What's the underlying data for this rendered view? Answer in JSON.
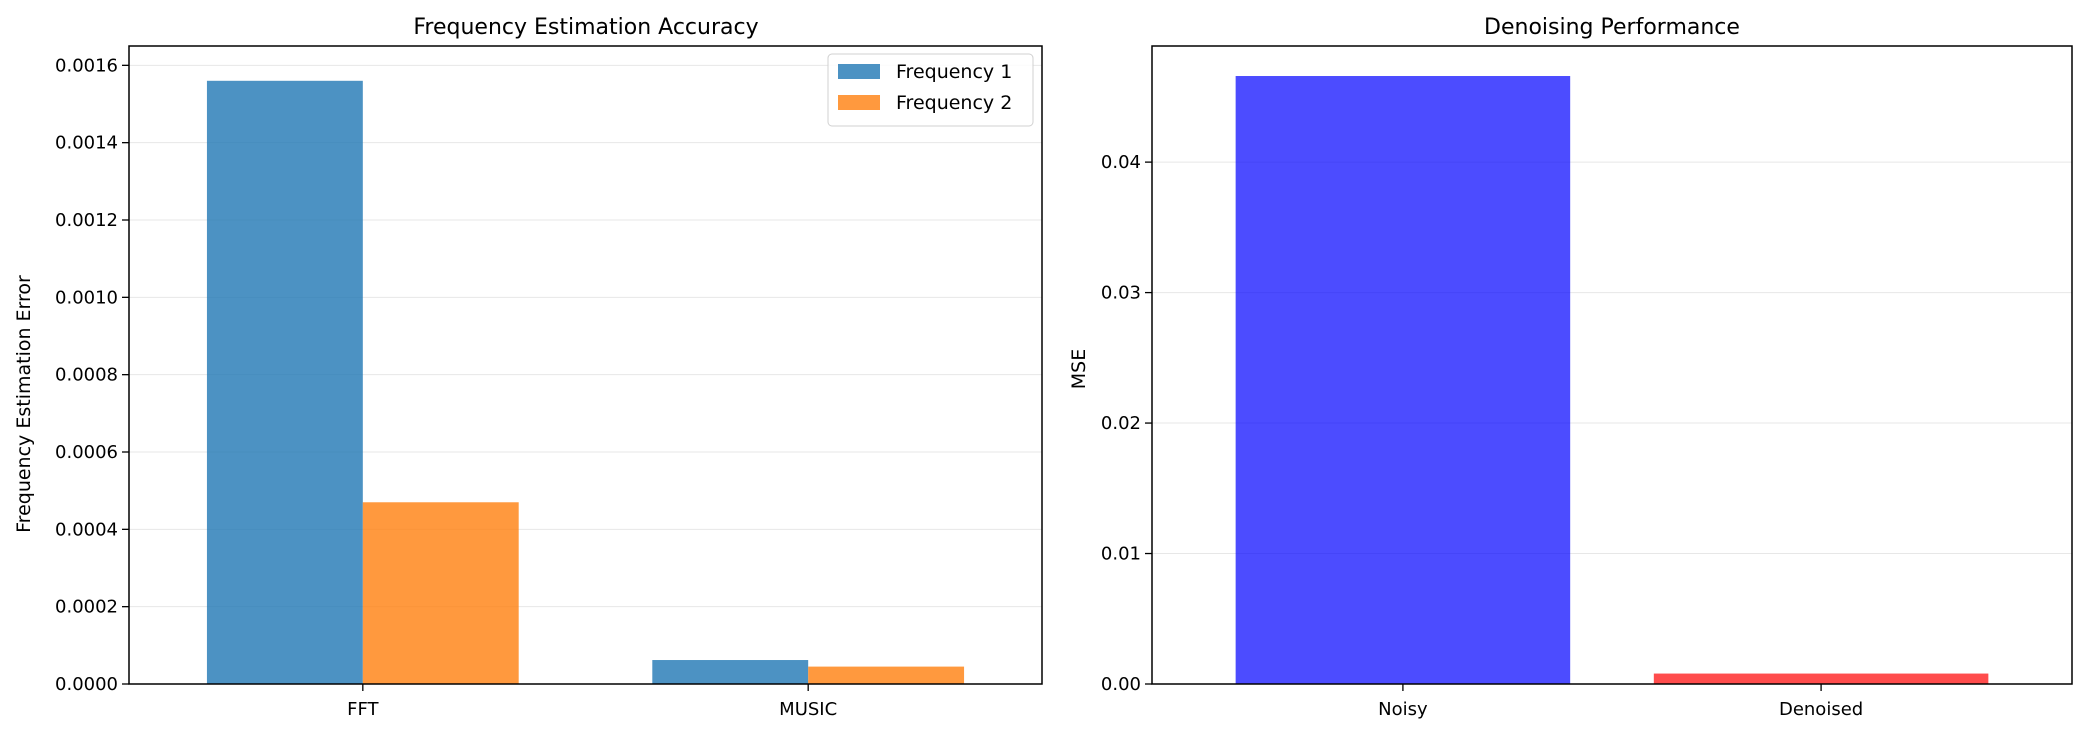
{
  "chart_data": [
    {
      "type": "bar",
      "title": "Frequency Estimation Accuracy",
      "xlabel": "",
      "ylabel": "Frequency Estimation Error",
      "categories": [
        "FFT",
        "MUSIC"
      ],
      "series": [
        {
          "name": "Frequency 1",
          "color": "#1f77b4",
          "values": [
            0.00156,
            6.2e-05
          ]
        },
        {
          "name": "Frequency 2",
          "color": "#ff7f0e",
          "values": [
            0.00047,
            4.5e-05
          ]
        }
      ],
      "ylim": [
        0,
        0.00165
      ],
      "yticks": [
        0.0,
        0.0002,
        0.0004,
        0.0006,
        0.0008,
        0.001,
        0.0012,
        0.0014,
        0.0016
      ],
      "ytick_labels": [
        "0.0000",
        "0.0002",
        "0.0004",
        "0.0006",
        "0.0008",
        "0.0010",
        "0.0012",
        "0.0014",
        "0.0016"
      ],
      "grid": "y",
      "legend": "top-right",
      "bar_opacity": 0.8
    },
    {
      "type": "bar",
      "title": "Denoising Performance",
      "xlabel": "",
      "ylabel": "MSE",
      "categories": [
        "Noisy",
        "Denoised"
      ],
      "colors": [
        "#0000ff",
        "#ff0000"
      ],
      "values": [
        0.0466,
        0.0008
      ],
      "ylim": [
        0,
        0.0489
      ],
      "yticks": [
        0.0,
        0.01,
        0.02,
        0.03,
        0.04
      ],
      "ytick_labels": [
        "0.00",
        "0.01",
        "0.02",
        "0.03",
        "0.04"
      ],
      "grid": "y",
      "bar_opacity": 0.7
    }
  ]
}
